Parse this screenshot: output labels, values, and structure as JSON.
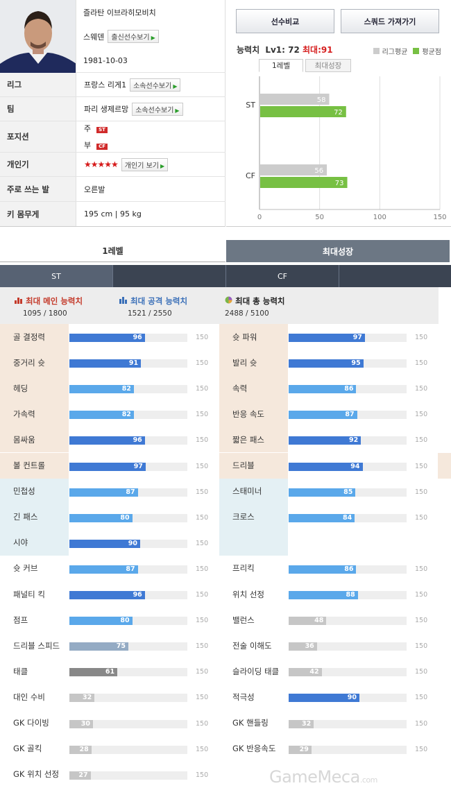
{
  "profile": {
    "name": "즐라탄 이브라히모비치",
    "nation": "스웨덴",
    "nation_btn": "출신선수보기",
    "birth": "1981-10-03",
    "rows": [
      {
        "label": "리그",
        "value": "프랑스 리게1",
        "btn": "소속선수보기"
      },
      {
        "label": "팀",
        "value": "파리 생제르망",
        "btn": "소속선수보기"
      },
      {
        "label": "포지션",
        "main_label": "주",
        "main_pos": "ST",
        "sub_label": "부",
        "sub_pos": "CF"
      },
      {
        "label": "개인기",
        "stars": "★★★★★",
        "btn": "개인기 보기"
      },
      {
        "label": "주로 쓰는 발",
        "value": "오른발"
      },
      {
        "label": "키 몸무게",
        "value": "195 cm | 95 kg"
      }
    ]
  },
  "buttons": {
    "compare": "선수비교",
    "squad": "스쿼드 가져가기"
  },
  "ability": {
    "title": "능력치",
    "lv": "Lv1: 72",
    "max": "최대:91",
    "legend_league": "리그평균",
    "legend_avg": "평균점",
    "tab1": "1레벨",
    "tab2": "최대성장"
  },
  "colors": {
    "league": "#cccccc",
    "avg": "#77c043",
    "blue": "#3f79d4",
    "lightblue": "#5aa8ea",
    "gray": "#c6c6c6",
    "steel": "#94abc4",
    "dark": "#888888",
    "red_tone": "#f5e8dc",
    "cyan_tone": "#e4f0f4"
  },
  "chart_data": {
    "type": "bar",
    "orientation": "horizontal",
    "categories": [
      "ST",
      "CF"
    ],
    "series": [
      {
        "name": "리그평균",
        "values": [
          58,
          56
        ]
      },
      {
        "name": "평균점",
        "values": [
          72,
          73
        ]
      }
    ],
    "xlim": [
      0,
      150
    ],
    "xticks": [
      "0",
      "50",
      "100",
      "150"
    ],
    "grid": true,
    "legend": "top-right"
  },
  "level_tabs": {
    "level1": "1레벨",
    "max": "최대성장"
  },
  "positions": [
    "ST",
    "CF"
  ],
  "totals": [
    {
      "title": "최대 메인 능력치",
      "value": "1095 / 1800",
      "icon": "bar-chart-red-icon"
    },
    {
      "title": "최대 공격 능력치",
      "value": "1521 / 2550",
      "icon": "bar-chart-blue-icon"
    },
    {
      "title": "최대 총 능력치",
      "value": "2488 / 5100",
      "icon": "pie-chart-icon"
    }
  ],
  "stat_max": "150",
  "stats_left": [
    {
      "name": "골 결정력",
      "value": "96",
      "bg": "red",
      "bar": "blue"
    },
    {
      "name": "중거리 슛",
      "value": "91",
      "bg": "red",
      "bar": "blue"
    },
    {
      "name": "헤딩",
      "value": "82",
      "bg": "red",
      "bar": "lightblue"
    },
    {
      "name": "가속력",
      "value": "82",
      "bg": "red",
      "bar": "lightblue"
    },
    {
      "name": "몸싸움",
      "value": "96",
      "bg": "red",
      "bar": "blue"
    },
    {
      "name": "볼 컨트롤",
      "value": "97",
      "bg": "red",
      "bar": "blue"
    },
    {
      "name": "민첩성",
      "value": "87",
      "bg": "cyan",
      "bar": "lightblue"
    },
    {
      "name": "긴 패스",
      "value": "80",
      "bg": "cyan",
      "bar": "lightblue"
    },
    {
      "name": "시야",
      "value": "90",
      "bg": "cyan",
      "bar": "blue"
    },
    {
      "name": "슛 커브",
      "value": "87",
      "bg": "none",
      "bar": "lightblue"
    },
    {
      "name": "패널티 킥",
      "value": "96",
      "bg": "none",
      "bar": "blue"
    },
    {
      "name": "점프",
      "value": "80",
      "bg": "none",
      "bar": "lightblue"
    },
    {
      "name": "드리블 스피드",
      "value": "75",
      "bg": "none",
      "bar": "steel"
    },
    {
      "name": "태클",
      "value": "61",
      "bg": "none",
      "bar": "dark"
    },
    {
      "name": "대인 수비",
      "value": "32",
      "bg": "none",
      "bar": "gray"
    },
    {
      "name": "GK 다이빙",
      "value": "30",
      "bg": "none",
      "bar": "gray"
    },
    {
      "name": "GK 골킥",
      "value": "28",
      "bg": "none",
      "bar": "gray"
    },
    {
      "name": "GK 위치 선정",
      "value": "27",
      "bg": "none",
      "bar": "gray"
    }
  ],
  "stats_right": [
    {
      "name": "슛 파워",
      "value": "97",
      "bg": "red",
      "bar": "blue"
    },
    {
      "name": "발리 슛",
      "value": "95",
      "bg": "red",
      "bar": "blue"
    },
    {
      "name": "속력",
      "value": "86",
      "bg": "red",
      "bar": "lightblue"
    },
    {
      "name": "반응 속도",
      "value": "87",
      "bg": "red",
      "bar": "lightblue"
    },
    {
      "name": "짧은 패스",
      "value": "92",
      "bg": "red",
      "bar": "blue"
    },
    {
      "name": "드리블",
      "value": "94",
      "bg": "red",
      "bar": "blue"
    },
    {
      "name": "스태미너",
      "value": "85",
      "bg": "cyan",
      "bar": "lightblue"
    },
    {
      "name": "크로스",
      "value": "84",
      "bg": "cyan",
      "bar": "lightblue"
    },
    {
      "name": "",
      "value": "",
      "bg": "cyan",
      "bar": "none"
    },
    {
      "name": "프리킥",
      "value": "86",
      "bg": "none",
      "bar": "lightblue"
    },
    {
      "name": "위치 선정",
      "value": "88",
      "bg": "none",
      "bar": "lightblue"
    },
    {
      "name": "밸런스",
      "value": "48",
      "bg": "none",
      "bar": "gray"
    },
    {
      "name": "전술 이해도",
      "value": "36",
      "bg": "none",
      "bar": "gray"
    },
    {
      "name": "슬라이딩 태클",
      "value": "42",
      "bg": "none",
      "bar": "gray"
    },
    {
      "name": "적극성",
      "value": "90",
      "bg": "none",
      "bar": "blue"
    },
    {
      "name": "GK 핸들링",
      "value": "32",
      "bg": "none",
      "bar": "gray"
    },
    {
      "name": "GK 반응속도",
      "value": "29",
      "bg": "none",
      "bar": "gray"
    }
  ],
  "watermark": "GameMeca",
  "watermark_suffix": ".com"
}
